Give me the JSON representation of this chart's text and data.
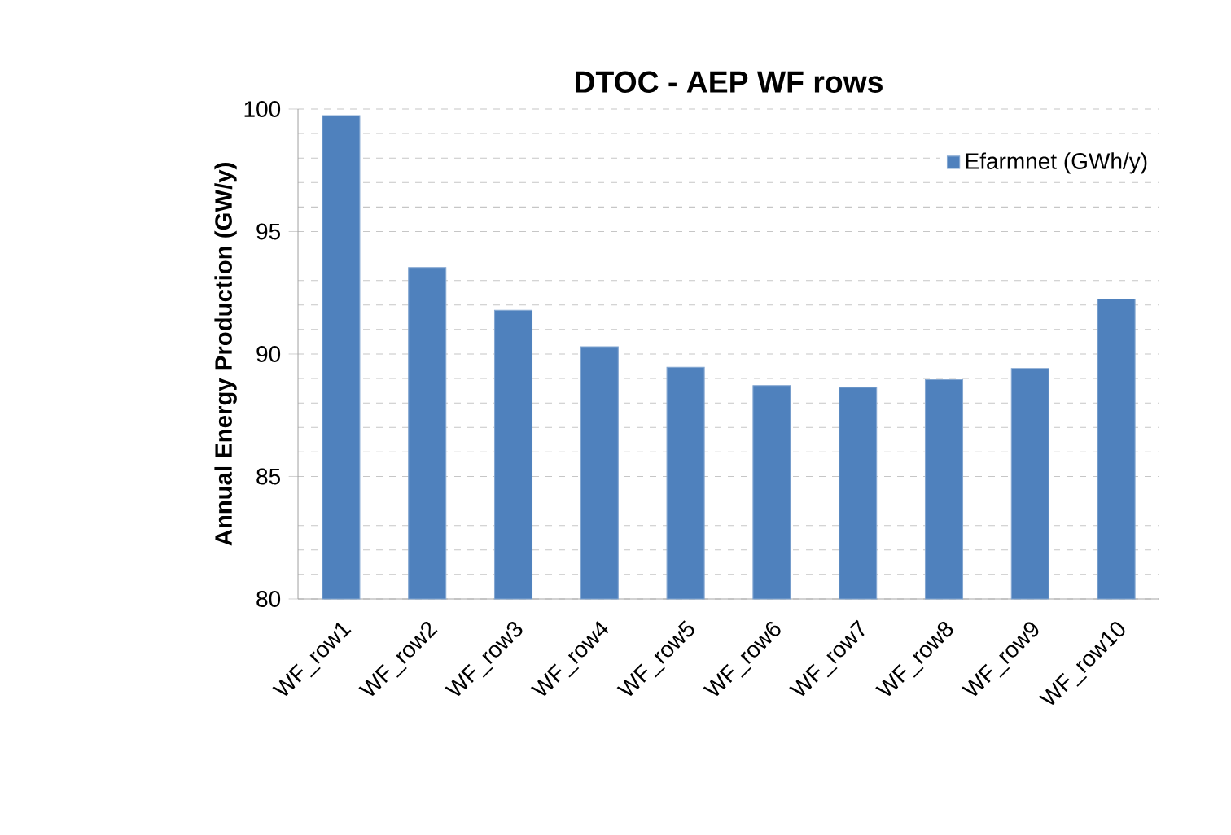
{
  "chart_data": {
    "type": "bar",
    "title": "DTOC - AEP WF rows",
    "ylabel": "Annual Energy Production (GW/y)",
    "categories": [
      "WF_row1",
      "WF_row2",
      "WF_row3",
      "WF_row4",
      "WF_row5",
      "WF_row6",
      "WF_row7",
      "WF_row8",
      "WF_row9",
      "WF_row10"
    ],
    "series": [
      {
        "name": "Efarmnet (GWh/y)",
        "color": "#4f81bd",
        "values": [
          99.73,
          93.53,
          91.78,
          90.3,
          89.46,
          88.71,
          88.64,
          88.95,
          89.41,
          92.24
        ]
      }
    ],
    "ylim": [
      80,
      100
    ],
    "yticks": [
      80,
      85,
      90,
      95,
      100
    ],
    "grid": "y",
    "legend": "top right"
  }
}
